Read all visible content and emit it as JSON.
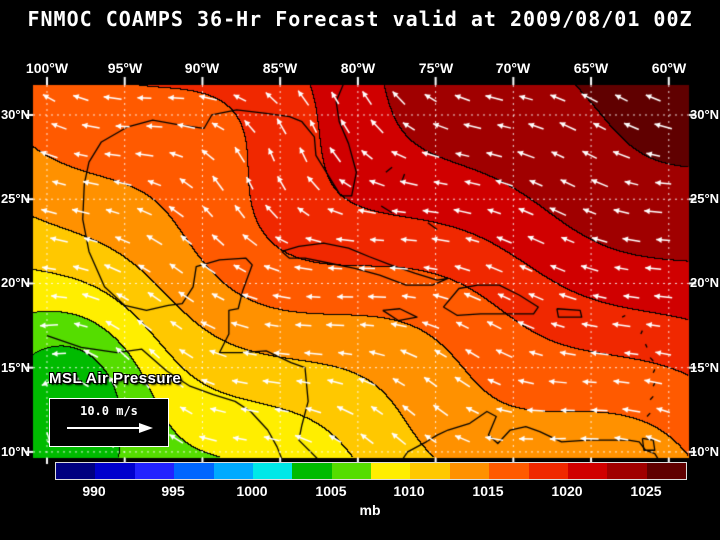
{
  "title": "FNMOC COAMPS 36-Hr Forecast valid at 2009/08/01 00Z",
  "axes": {
    "lon_labels": [
      "100°W",
      "95°W",
      "90°W",
      "85°W",
      "80°W",
      "75°W",
      "70°W",
      "65°W",
      "60°W"
    ],
    "lat_labels": [
      "30°N",
      "25°N",
      "20°N",
      "15°N",
      "10°N"
    ],
    "lon_range_deg_west": [
      100,
      60
    ],
    "lat_range_deg_north": [
      10,
      30
    ],
    "grid_interval_deg": 5
  },
  "overlay": {
    "field_label": "MSL Air Pressure",
    "wind_scale_label": "10.0 m/s"
  },
  "colorbar": {
    "unit": "mb",
    "tick_labels": [
      "990",
      "995",
      "1000",
      "1005",
      "1010",
      "1015",
      "1020",
      "1025"
    ],
    "bin_start_mb": 987.5,
    "bin_step_mb": 2.5,
    "colors": [
      "#000080",
      "#0000cd",
      "#2222ff",
      "#0066ff",
      "#00aaff",
      "#00e8e8",
      "#00bb00",
      "#55dd00",
      "#ffee00",
      "#ffc800",
      "#ff9100",
      "#ff5a00",
      "#f02800",
      "#d00000",
      "#a00000",
      "#600000"
    ]
  },
  "style": {
    "background": "#000000",
    "text_color": "#ffffff",
    "arrow_color": "#ffffff"
  }
}
